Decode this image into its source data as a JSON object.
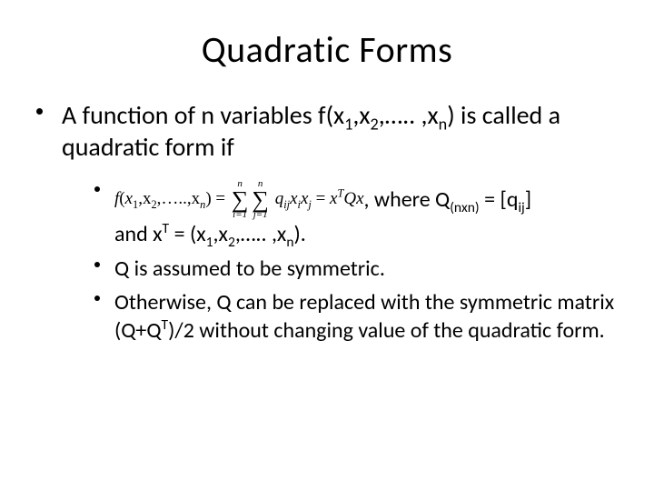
{
  "title": "Quadratic Forms",
  "l1_a": "A function of n variables f(x",
  "l1_b": ",x",
  "l1_c": ",….. ,x",
  "l1_d": ") is called a quadratic form if",
  "sub1": "1",
  "sub2": "2",
  "subn": "n",
  "formula": {
    "fn_a": "f",
    "fn_open": "(",
    "fn_args_a": "x",
    "fn_args_b": ",x",
    "fn_args_c": ",…..,x",
    "fn_close": ")",
    "eq": " = ",
    "sum1_top": "n",
    "sum1_bot": "i=1",
    "sum2_top": "n",
    "sum2_bot": "j=1",
    "q": "q",
    "q_sub": "ij",
    "xi": "x",
    "xi_sub": "i",
    "xj": "x",
    "xj_sub": "j",
    "eq2": " = ",
    "xT": "x",
    "T": "T",
    "Q": "Q",
    "x": "x"
  },
  "l2a_after_a": ", where Q",
  "l2a_after_sub": "(nxn)",
  "l2a_after_b": " = [q",
  "l2a_after_sub2": "ij",
  "l2a_after_c": "]",
  "l2a_line2_a": "and x",
  "l2a_line2_sup": "T",
  "l2a_line2_b": " = (x",
  "l2a_line2_c": ",x",
  "l2a_line2_d": ",….. ,x",
  "l2a_line2_e": ").",
  "l2b": "Q is assumed to be symmetric.",
  "l2c_a": "Otherwise, Q can be replaced with the symmetric matrix (Q+Q",
  "l2c_sup": "T",
  "l2c_b": ")/2 without changing value of the quadratic form."
}
